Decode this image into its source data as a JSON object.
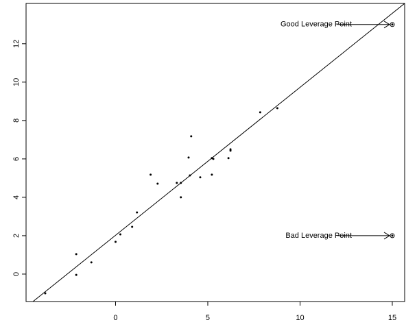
{
  "chart_data": {
    "type": "scatter",
    "x": [
      -3.81,
      -2.13,
      -2.13,
      -1.31,
      0,
      0.26,
      0.9,
      1.16,
      1.9,
      2.28,
      3.32,
      3.54,
      3.54,
      3.96,
      4.03,
      4.1,
      4.59,
      5.22,
      5.3,
      5.22,
      6.12,
      6.23,
      6.23,
      7.84,
      8.77,
      15,
      15
    ],
    "y": [
      -1.0,
      1.04,
      -0.04,
      0.61,
      1.68,
      2.07,
      2.46,
      3.21,
      5.18,
      4.71,
      4.75,
      4.75,
      4.0,
      6.07,
      5.14,
      7.18,
      5.04,
      6.04,
      6.0,
      5.18,
      6.04,
      6.5,
      6.43,
      8.43,
      8.64,
      13,
      2
    ],
    "color": "#000000",
    "abline": {
      "intercept": 2.02,
      "slope": 0.771
    },
    "annotations": [
      {
        "text": "Good Leverage Point"
      },
      {
        "text": "Bad Leverage Point"
      }
    ],
    "xlim": [
      -4.85,
      15.67
    ],
    "ylim": [
      -1.43,
      14.1
    ],
    "xticks": [
      0,
      5,
      10,
      15
    ],
    "yticks": [
      0,
      2,
      4,
      6,
      8,
      10,
      12
    ]
  }
}
